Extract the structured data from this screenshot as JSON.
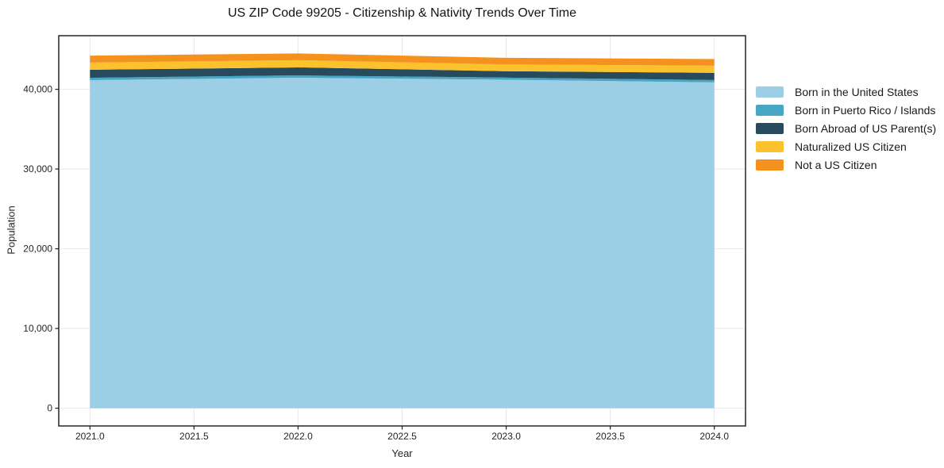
{
  "chart_data": {
    "type": "area",
    "stacked": true,
    "title": "US ZIP Code 99205 - Citizenship & Nativity Trends Over Time",
    "xlabel": "Year",
    "ylabel": "Population",
    "x": [
      2021,
      2022,
      2023,
      2024
    ],
    "series": [
      {
        "name": "Born in the United States",
        "color": "#9CCEE6",
        "values": [
          41150,
          41450,
          41200,
          40870
        ]
      },
      {
        "name": "Born in Puerto Rico / Islands",
        "color": "#46A6C4",
        "values": [
          300,
          300,
          270,
          300
        ]
      },
      {
        "name": "Born Abroad of US Parent(s)",
        "color": "#274A5C",
        "values": [
          1000,
          1000,
          800,
          890
        ]
      },
      {
        "name": "Naturalized US Citizen",
        "color": "#FBC22D",
        "values": [
          900,
          900,
          850,
          900
        ]
      },
      {
        "name": "Not a US Citizen",
        "color": "#F5921E",
        "values": [
          870,
          850,
          830,
          840
        ]
      }
    ],
    "x_ticks": [
      2021.0,
      2021.5,
      2022.0,
      2022.5,
      2023.0,
      2023.5,
      2024.0
    ],
    "x_tick_labels": [
      "2021.0",
      "2021.5",
      "2022.0",
      "2022.5",
      "2023.0",
      "2023.5",
      "2024.0"
    ],
    "y_ticks": [
      0,
      10000,
      20000,
      30000,
      40000
    ],
    "y_tick_labels": [
      "0",
      "10,000",
      "20,000",
      "30,000",
      "40,000"
    ],
    "xlim": [
      2020.85,
      2024.15
    ],
    "ylim": [
      -2225,
      46725
    ],
    "grid": true,
    "legend_position": "right-outside",
    "grid_color": "#e8e8e8",
    "frame_color": "#262626",
    "tick_color": "#262626",
    "tick_label_color": "#262626",
    "background_color": "#ffffff"
  }
}
